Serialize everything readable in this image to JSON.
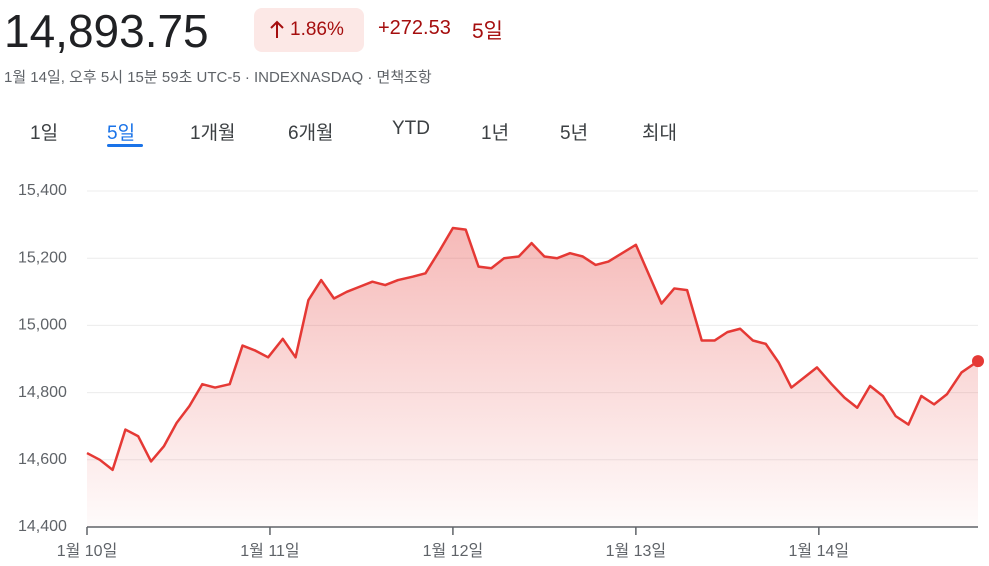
{
  "header": {
    "price": "14,893.75",
    "change_percent": "1.86%",
    "change": "+272.53",
    "period": "5일",
    "subtitle": "1월 14일, 오후 5시 15분 59초 UTC-5 · INDEXNASDAQ · 면책조항"
  },
  "tabs": [
    "1일",
    "5일",
    "1개월",
    "6개월",
    "YTD",
    "1년",
    "5년",
    "최대"
  ],
  "active_tab": 1,
  "chart_data": {
    "type": "line",
    "color": "#e53935",
    "grid": true,
    "x": [
      0,
      0.07,
      0.14,
      0.21,
      0.28,
      0.35,
      0.42,
      0.49,
      0.56,
      0.63,
      0.7,
      0.78,
      0.85,
      0.92,
      0.99,
      1.07,
      1.14,
      1.21,
      1.28,
      1.35,
      1.42,
      1.49,
      1.56,
      1.63,
      1.7,
      1.78,
      1.85,
      1.93,
      2.0,
      2.07,
      2.14,
      2.21,
      2.28,
      2.36,
      2.43,
      2.5,
      2.57,
      2.64,
      2.71,
      2.78,
      2.85,
      3.0,
      3.14,
      3.21,
      3.28,
      3.36,
      3.43,
      3.5,
      3.57,
      3.64,
      3.71,
      3.78,
      3.85,
      3.92,
      3.99,
      4.07,
      4.14,
      4.21,
      4.28,
      4.35,
      4.42,
      4.49,
      4.56,
      4.63,
      4.7,
      4.78,
      4.87
    ],
    "values": [
      14620,
      14600,
      14570,
      14690,
      14670,
      14595,
      14640,
      14710,
      14760,
      14825,
      14815,
      14825,
      14940,
      14925,
      14905,
      14960,
      14905,
      15075,
      15135,
      15080,
      15100,
      15115,
      15130,
      15120,
      15135,
      15145,
      15155,
      15225,
      15290,
      15285,
      15175,
      15170,
      15200,
      15205,
      15245,
      15205,
      15200,
      15215,
      15205,
      15180,
      15190,
      15240,
      15065,
      15110,
      15105,
      14955,
      14955,
      14980,
      14990,
      14955,
      14945,
      14890,
      14815,
      14845,
      14875,
      14825,
      14785,
      14755,
      14820,
      14790,
      14730,
      14705,
      14790,
      14765,
      14795,
      14860,
      14893.75
    ],
    "xlim": [
      0,
      4.87
    ],
    "xticks": [
      {
        "value": 0,
        "label": "1월 10일"
      },
      {
        "value": 1,
        "label": "1월 11일"
      },
      {
        "value": 2,
        "label": "1월 12일"
      },
      {
        "value": 3,
        "label": "1월 13일"
      },
      {
        "value": 4,
        "label": "1월 14일"
      }
    ],
    "ylim": [
      14400,
      15400
    ],
    "yticks": [
      {
        "value": 14400,
        "label": "14,400"
      },
      {
        "value": 14600,
        "label": "14,600"
      },
      {
        "value": 14800,
        "label": "14,800"
      },
      {
        "value": 15000,
        "label": "15,000"
      },
      {
        "value": 15200,
        "label": "15,200"
      },
      {
        "value": 15400,
        "label": "15,400"
      }
    ]
  }
}
